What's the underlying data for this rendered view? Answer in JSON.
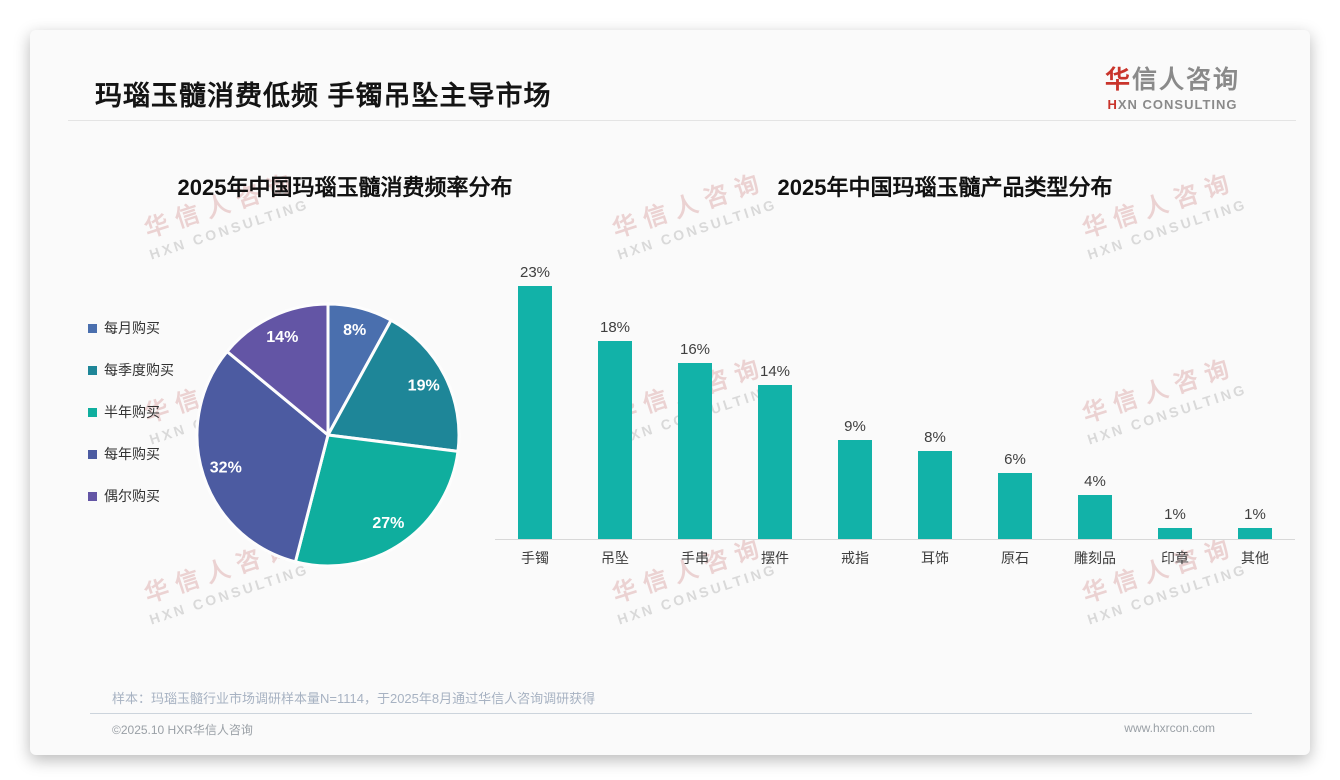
{
  "header": {
    "title": "玛瑙玉髓消费低频 手镯吊坠主导市场",
    "logo": {
      "cn_first": "华",
      "cn_rest": "信人咨询",
      "en_first": "H",
      "en_rest": "XN CONSULTING"
    }
  },
  "watermark": {
    "line1": "华信人咨询",
    "line2": "HXN CONSULTING"
  },
  "chart_data": [
    {
      "type": "pie",
      "title": "2025年中国玛瑙玉髓消费频率分布",
      "labels": [
        "每月购买",
        "每季度购买",
        "半年购买",
        "每年购买",
        "偶尔购买"
      ],
      "values": [
        8,
        19,
        27,
        32,
        14
      ],
      "value_suffix": "%",
      "colors": [
        "#4a6fae",
        "#1e8698",
        "#0fae9e",
        "#4c5ba1",
        "#6355a5"
      ],
      "legend_position": "left",
      "start_angle_deg": 0,
      "direction": "clockwise",
      "data_labels": [
        "8%",
        "19%",
        "27%",
        "32%",
        "14%"
      ]
    },
    {
      "type": "bar",
      "title": "2025年中国玛瑙玉髓产品类型分布",
      "categories": [
        "手镯",
        "吊坠",
        "手串",
        "摆件",
        "戒指",
        "耳饰",
        "原石",
        "雕刻品",
        "印章",
        "其他"
      ],
      "values": [
        23,
        18,
        16,
        14,
        9,
        8,
        6,
        4,
        1,
        1
      ],
      "data_labels": [
        "23%",
        "18%",
        "16%",
        "14%",
        "9%",
        "8%",
        "6%",
        "4%",
        "1%",
        "1%"
      ],
      "bar_color": "#12b2a8",
      "xlabel": "",
      "ylabel": "",
      "ylim": [
        0,
        25
      ],
      "grid": false,
      "axis_line_color": "#d8d8d8"
    }
  ],
  "footer": {
    "sample_note": "样本：玛瑙玉髓行业市场调研样本量N=1114，于2025年8月通过华信人咨询调研获得",
    "copyright": "©2025.10 HXR华信人咨询",
    "website": "www.hxrcon.com"
  }
}
